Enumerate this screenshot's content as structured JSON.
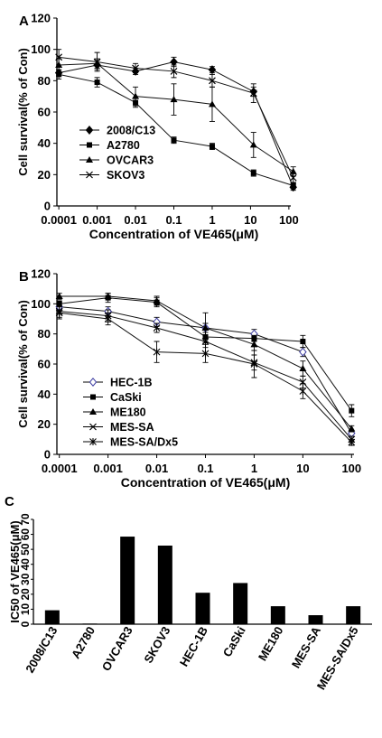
{
  "chart_data": [
    {
      "panel_label": "A",
      "type": "line",
      "x_scale": "log",
      "x": [
        "0.0001",
        "0.001",
        "0.01",
        "0.1",
        "1",
        "10",
        "100"
      ],
      "xlabel": "Concentration of VE465(μM)",
      "ylabel": "Cell survival(% of Con)",
      "ylim": [
        0,
        120
      ],
      "yticks": [
        "0",
        "20",
        "40",
        "60",
        "80",
        "100",
        "120"
      ],
      "legend_position": "bottom-left",
      "series": [
        {
          "name": "2008/C13",
          "marker": "diamond",
          "x": [
            0.0001,
            0.001,
            0.01,
            0.1,
            1,
            12,
            130
          ],
          "values": [
            85,
            90,
            86,
            92,
            87,
            73,
            12
          ],
          "errors": [
            2,
            3,
            2,
            3,
            2,
            3,
            2
          ]
        },
        {
          "name": "A2780",
          "marker": "square",
          "x": [
            0.0001,
            0.001,
            0.01,
            0.1,
            1,
            12,
            130
          ],
          "values": [
            84,
            79,
            66,
            42,
            38,
            21,
            13
          ],
          "errors": [
            3,
            3,
            3,
            2,
            2,
            2,
            2
          ]
        },
        {
          "name": "OVCAR3",
          "marker": "triangle",
          "x": [
            0.0001,
            0.001,
            0.01,
            0.1,
            1,
            12,
            130
          ],
          "values": [
            90,
            91,
            70,
            68,
            65,
            39,
            22
          ],
          "errors": [
            4,
            3,
            6,
            10,
            11,
            8,
            3
          ]
        },
        {
          "name": "SKOV3",
          "marker": "x",
          "x": [
            0.0001,
            0.001,
            0.01,
            0.1,
            1,
            12,
            130
          ],
          "values": [
            95,
            92,
            88,
            86,
            80,
            72,
            18
          ],
          "errors": [
            5,
            6,
            3,
            4,
            4,
            6,
            3
          ]
        }
      ]
    },
    {
      "panel_label": "B",
      "type": "line",
      "x_scale": "log",
      "x": [
        "0.0001",
        "0.001",
        "0.01",
        "0.1",
        "1",
        "10",
        "100"
      ],
      "xlabel": "Concentration of VE465(μM)",
      "ylabel": "Cell survival(% of Con)",
      "ylim": [
        0,
        120
      ],
      "yticks": [
        "0",
        "20",
        "40",
        "60",
        "80",
        "100",
        "120"
      ],
      "legend_position": "bottom-left",
      "series": [
        {
          "name": "HEC-1B",
          "marker": "open-diamond",
          "x": [
            0.0001,
            0.001,
            0.01,
            0.1,
            1,
            10,
            100
          ],
          "values": [
            98,
            95,
            88,
            84,
            80,
            68,
            14
          ],
          "errors": [
            3,
            3,
            3,
            3,
            3,
            3,
            2
          ]
        },
        {
          "name": "CaSki",
          "marker": "square",
          "x": [
            0.0001,
            0.001,
            0.01,
            0.1,
            1,
            10,
            100
          ],
          "values": [
            100,
            104,
            101,
            78,
            77,
            75,
            29
          ],
          "errors": [
            2,
            3,
            3,
            3,
            2,
            4,
            4
          ]
        },
        {
          "name": "ME180",
          "marker": "triangle",
          "x": [
            0.0001,
            0.001,
            0.01,
            0.1,
            1,
            10,
            100
          ],
          "values": [
            105,
            105,
            102,
            84,
            73,
            57,
            17
          ],
          "errors": [
            2,
            2,
            3,
            10,
            4,
            5,
            2
          ]
        },
        {
          "name": "MES-SA",
          "marker": "x",
          "x": [
            0.0001,
            0.001,
            0.01,
            0.1,
            1,
            10,
            100
          ],
          "values": [
            95,
            92,
            84,
            75,
            61,
            48,
            10
          ],
          "errors": [
            4,
            4,
            3,
            4,
            5,
            4,
            2
          ]
        },
        {
          "name": "MES-SA/Dx5",
          "marker": "star",
          "x": [
            0.0001,
            0.001,
            0.01,
            0.1,
            1,
            10,
            100
          ],
          "values": [
            94,
            90,
            68,
            67,
            60,
            42,
            8
          ],
          "errors": [
            4,
            4,
            7,
            6,
            9,
            5,
            2
          ]
        }
      ]
    },
    {
      "panel_label": "C",
      "type": "bar",
      "categories": [
        "2008/C13",
        "A2780",
        "OVCAR3",
        "SKOV3",
        "HEC-1B",
        "CaSki",
        "ME180",
        "MES-SA",
        "MES-SA/Dx5"
      ],
      "values": [
        9.3,
        0.4,
        58.5,
        52.5,
        21,
        27.5,
        12,
        6,
        12
      ],
      "ylabel": "IC50 of VE465(μM)",
      "ylim": [
        0,
        70
      ],
      "yticks": [
        "0",
        "10",
        "20",
        "30",
        "40",
        "50",
        "60",
        "70"
      ],
      "bar_color": "#000000"
    }
  ]
}
